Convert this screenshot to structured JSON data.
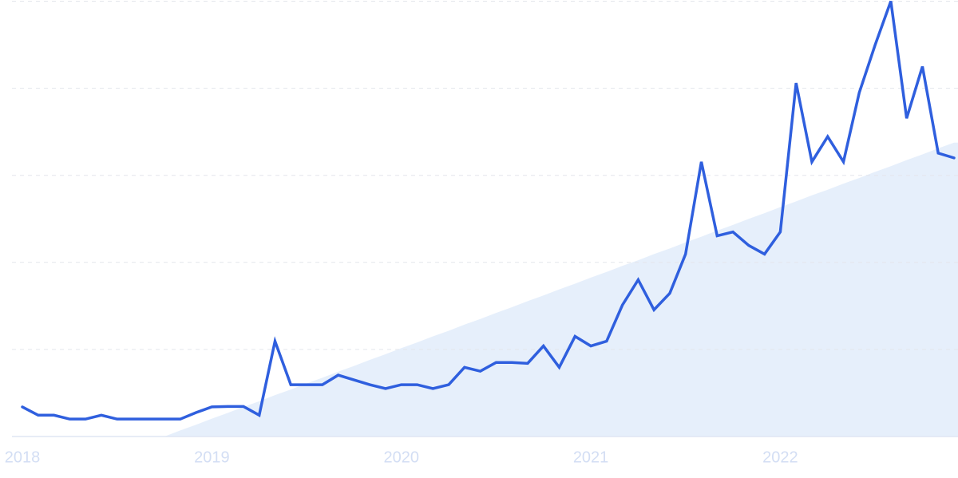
{
  "chart_data": {
    "type": "line",
    "categories": [
      "2018",
      null,
      null,
      null,
      null,
      null,
      null,
      null,
      null,
      null,
      null,
      null,
      "2019",
      null,
      null,
      null,
      null,
      null,
      null,
      null,
      null,
      null,
      null,
      null,
      "2020",
      null,
      null,
      null,
      null,
      null,
      null,
      null,
      null,
      null,
      null,
      null,
      "2021",
      null,
      null,
      null,
      null,
      null,
      null,
      null,
      null,
      null,
      null,
      null,
      "2022",
      null,
      null,
      null,
      null,
      null,
      null,
      null,
      null,
      null,
      null,
      null
    ],
    "values": [
      6.8,
      4.9,
      4.9,
      4.0,
      4.0,
      4.9,
      4.0,
      4.0,
      4.0,
      4.0,
      4.0,
      5.5,
      6.8,
      6.9,
      6.9,
      4.9,
      21.9,
      11.9,
      11.9,
      11.9,
      14.1,
      13.0,
      11.9,
      11.0,
      11.9,
      11.9,
      11.0,
      11.9,
      15.9,
      15.0,
      17.0,
      17.0,
      16.8,
      20.8,
      15.9,
      23.0,
      20.8,
      21.9,
      30.2,
      36.0,
      29.1,
      32.9,
      41.9,
      63.1,
      46.1,
      47.0,
      43.9,
      41.9,
      47.0,
      81.2,
      63.1,
      68.9,
      63.1,
      79.0,
      89.9,
      100,
      73.1,
      85.0,
      65.1,
      64.0
    ],
    "color": "#2f5fde",
    "trend": {
      "color": "#e6effb",
      "values": [
        null,
        null,
        null,
        null,
        null,
        null,
        null,
        null,
        null,
        0,
        1.4,
        2.7,
        4.1,
        5.4,
        6.8,
        8.1,
        9.5,
        10.8,
        12.2,
        13.5,
        14.9,
        16.2,
        17.6,
        18.9,
        20.3,
        21.6,
        23.0,
        24.3,
        25.7,
        27.0,
        28.4,
        29.7,
        31.1,
        32.4,
        33.8,
        35.1,
        36.5,
        37.8,
        39.2,
        40.5,
        41.9,
        43.2,
        44.6,
        45.9,
        47.3,
        48.6,
        50.0,
        51.3,
        52.7,
        54.0,
        55.4,
        56.7,
        58.1,
        59.4,
        60.8,
        62.1,
        63.5,
        64.8,
        66.2,
        67.5
      ]
    },
    "ylim": [
      0,
      100
    ],
    "yticks": [
      0,
      20,
      40,
      60,
      80,
      100
    ],
    "grid": true
  }
}
